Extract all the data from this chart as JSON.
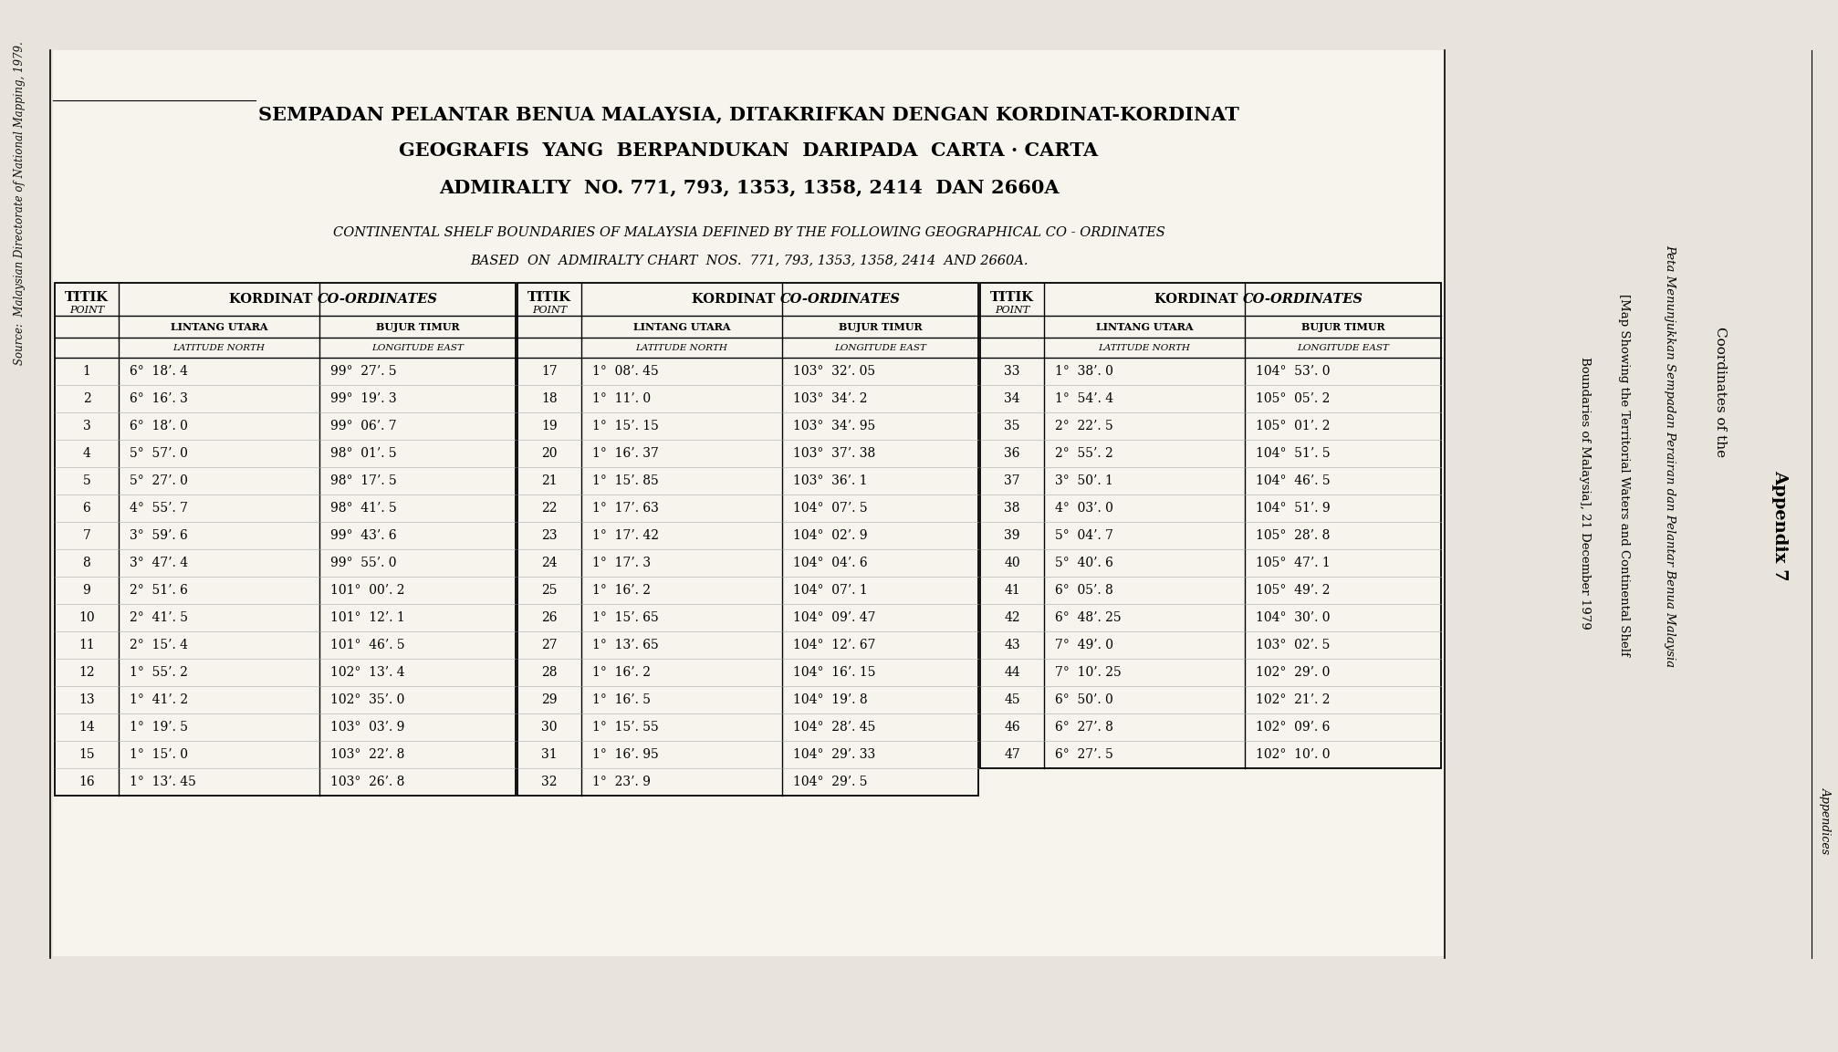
{
  "title_malay": "SEMPADAN PELANTAR BENUA MALAYSIA, DITAKRIFKAN DENGAN KORDINAT-KORDINAT",
  "title_malay2": "GEOGRAFIS  YANG  BERPANDUKAN  DARIPADA  CARTA · CARTA",
  "title_malay3": "ADMIRALTY  NO. 771, 793, 1353, 1358, 2414  DAN 2660A",
  "title_english": "CONTINENTAL SHELF BOUNDARIES OF MALAYSIA DEFINED BY THE FOLLOWING GEOGRAPHICAL CO - ORDINATES",
  "title_english2": "BASED  ON  ADMIRALTY CHART  NOS.  771, 793, 1353, 1358, 2414  AND 2660A.",
  "table1": [
    [
      "1",
      "6°  18’. 4",
      "99°  27’. 5"
    ],
    [
      "2",
      "6°  16’. 3",
      "99°  19’. 3"
    ],
    [
      "3",
      "6°  18’. 0",
      "99°  06’. 7"
    ],
    [
      "4",
      "5°  57’. 0",
      "98°  01’. 5"
    ],
    [
      "5",
      "5°  27’. 0",
      "98°  17’. 5"
    ],
    [
      "6",
      "4°  55’. 7",
      "98°  41’. 5"
    ],
    [
      "7",
      "3°  59’. 6",
      "99°  43’. 6"
    ],
    [
      "8",
      "3°  47’. 4",
      "99°  55’. 0"
    ],
    [
      "9",
      "2°  51’. 6",
      "101°  00’. 2"
    ],
    [
      "10",
      "2°  41’. 5",
      "101°  12’. 1"
    ],
    [
      "11",
      "2°  15’. 4",
      "101°  46’. 5"
    ],
    [
      "12",
      "1°  55’. 2",
      "102°  13’. 4"
    ],
    [
      "13",
      "1°  41’. 2",
      "102°  35’. 0"
    ],
    [
      "14",
      "1°  19’. 5",
      "103°  03’. 9"
    ],
    [
      "15",
      "1°  15’. 0",
      "103°  22’. 8"
    ],
    [
      "16",
      "1°  13’. 45",
      "103°  26’. 8"
    ]
  ],
  "table2": [
    [
      "17",
      "1°  08’. 45",
      "103°  32’. 05"
    ],
    [
      "18",
      "1°  11’. 0",
      "103°  34’. 2"
    ],
    [
      "19",
      "1°  15’. 15",
      "103°  34’. 95"
    ],
    [
      "20",
      "1°  16’. 37",
      "103°  37’. 38"
    ],
    [
      "21",
      "1°  15’. 85",
      "103°  36’. 1"
    ],
    [
      "22",
      "1°  17’. 63",
      "104°  07’. 5"
    ],
    [
      "23",
      "1°  17’. 42",
      "104°  02’. 9"
    ],
    [
      "24",
      "1°  17’. 3",
      "104°  04’. 6"
    ],
    [
      "25",
      "1°  16’. 2",
      "104°  07’. 1"
    ],
    [
      "26",
      "1°  15’. 65",
      "104°  09’. 47"
    ],
    [
      "27",
      "1°  13’. 65",
      "104°  12’. 67"
    ],
    [
      "28",
      "1°  16’. 2",
      "104°  16’. 15"
    ],
    [
      "29",
      "1°  16’. 5",
      "104°  19’. 8"
    ],
    [
      "30",
      "1°  15’. 55",
      "104°  28’. 45"
    ],
    [
      "31",
      "1°  16’. 95",
      "104°  29’. 33"
    ],
    [
      "32",
      "1°  23’. 9",
      "104°  29’. 5"
    ]
  ],
  "table3": [
    [
      "33",
      "1°  38’. 0",
      "104°  53’. 0"
    ],
    [
      "34",
      "1°  54’. 4",
      "105°  05’. 2"
    ],
    [
      "35",
      "2°  22’. 5",
      "105°  01’. 2"
    ],
    [
      "36",
      "2°  55’. 2",
      "104°  51’. 5"
    ],
    [
      "37",
      "3°  50’. 1",
      "104°  46’. 5"
    ],
    [
      "38",
      "4°  03’. 0",
      "104°  51’. 9"
    ],
    [
      "39",
      "5°  04’. 7",
      "105°  28’. 8"
    ],
    [
      "40",
      "5°  40’. 6",
      "105°  47’. 1"
    ],
    [
      "41",
      "6°  05’. 8",
      "105°  49’. 2"
    ],
    [
      "42",
      "6°  48’. 25",
      "104°  30’. 0"
    ],
    [
      "43",
      "7°  49’. 0",
      "103°  02’. 5"
    ],
    [
      "44",
      "7°  10’. 25",
      "102°  29’. 0"
    ],
    [
      "45",
      "6°  50’. 0",
      "102°  21’. 2"
    ],
    [
      "46",
      "6°  27’. 8",
      "102°  09’. 6"
    ],
    [
      "47",
      "6°  27’. 5",
      "102°  10’. 0"
    ]
  ],
  "side_title1": "Coordinates of the",
  "side_title2": "Peta Menunjukkan Sempadan Perairan dan Pelantar Benua Malaysia",
  "side_title3": "[Map Showing the Territorial Waters and Continental Shelf",
  "side_title4": "Boundaries of Malaysia], 21 December 1979",
  "appendix": "Appendix 7",
  "appendices": "Appendices",
  "source": "Source:  Malaysian Directorate of National Mapping, 1979.",
  "bg_color": "#e8e4dc",
  "content_bg": "#f7f4ee",
  "table_bg": "#f7f4ee"
}
